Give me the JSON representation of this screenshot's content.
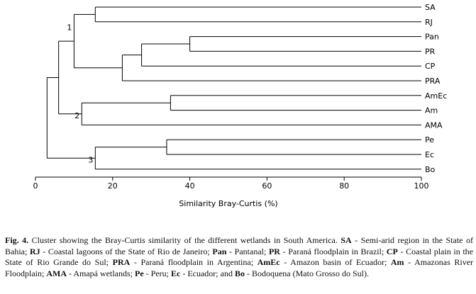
{
  "chart_data": {
    "type": "dendrogram",
    "orientation": "horizontal",
    "xlabel": "Similarity Bray-Curtis (%)",
    "xlim": [
      0,
      100
    ],
    "xticks": [
      0,
      20,
      40,
      60,
      80,
      100
    ],
    "leaves": [
      "SA",
      "RJ",
      "Pan",
      "PR",
      "CP",
      "PRA",
      "AmEc",
      "Am",
      "AMA",
      "Pe",
      "Ec",
      "Bo"
    ],
    "merges": [
      {
        "id": "n_sa_rj",
        "children": [
          "SA",
          "RJ"
        ],
        "similarity": 15.5
      },
      {
        "id": "n_pan_pr",
        "children": [
          "Pan",
          "PR"
        ],
        "similarity": 40
      },
      {
        "id": "n_panpr_cp",
        "children": [
          "n_pan_pr",
          "CP"
        ],
        "similarity": 27.5
      },
      {
        "id": "n_cp_pra",
        "children": [
          "n_panpr_cp",
          "PRA"
        ],
        "similarity": 22.5
      },
      {
        "id": "n_g1",
        "children": [
          "n_sa_rj",
          "n_cp_pra"
        ],
        "similarity": 10,
        "label": "1"
      },
      {
        "id": "n_amec_am",
        "children": [
          "AmEc",
          "Am"
        ],
        "similarity": 35
      },
      {
        "id": "n_g2",
        "children": [
          "n_amec_am",
          "AMA"
        ],
        "similarity": 12,
        "label": "2"
      },
      {
        "id": "n_g12",
        "children": [
          "n_g1",
          "n_g2"
        ],
        "similarity": 6
      },
      {
        "id": "n_pe_ec",
        "children": [
          "Pe",
          "Ec"
        ],
        "similarity": 34
      },
      {
        "id": "n_g3",
        "children": [
          "n_pe_ec",
          "Bo"
        ],
        "similarity": 15.5,
        "label": "3"
      },
      {
        "id": "root",
        "children": [
          "n_g12",
          "n_g3"
        ],
        "similarity": 3
      }
    ]
  },
  "caption": {
    "fig": "Fig. 4.",
    "intro": " Cluster showing the Bray-Curtis similarity of the different wetlands in South America. ",
    "items": [
      {
        "abbr": "SA",
        "desc": " - Semi-arid region in the State of Bahia; "
      },
      {
        "abbr": "RJ",
        "desc": " - Coastal lagoons of the State of Rio de Janeiro; "
      },
      {
        "abbr": "Pan",
        "desc": " - Pantanal; "
      },
      {
        "abbr": "PR",
        "desc": " - Paraná floodplain in Brazil; "
      },
      {
        "abbr": "CP",
        "desc": " - Coastal plain in the State of Rio Grande do Sul; "
      },
      {
        "abbr": "PRA",
        "desc": " - Paraná floodplain in Argentina; "
      },
      {
        "abbr": "AmEc",
        "desc": " - Amazon basin of Ecuador; "
      },
      {
        "abbr": "Am",
        "desc": " - Amazonas River Floodplain; "
      },
      {
        "abbr": "AMA",
        "desc": " - Amapá wetlands; "
      },
      {
        "abbr": "Pe",
        "desc": " - Peru; "
      },
      {
        "abbr": "Ec",
        "desc": " - Ecuador; and "
      },
      {
        "abbr": "Bo",
        "desc": " - Bodoquena (Mato Grosso do Sul)."
      }
    ]
  }
}
